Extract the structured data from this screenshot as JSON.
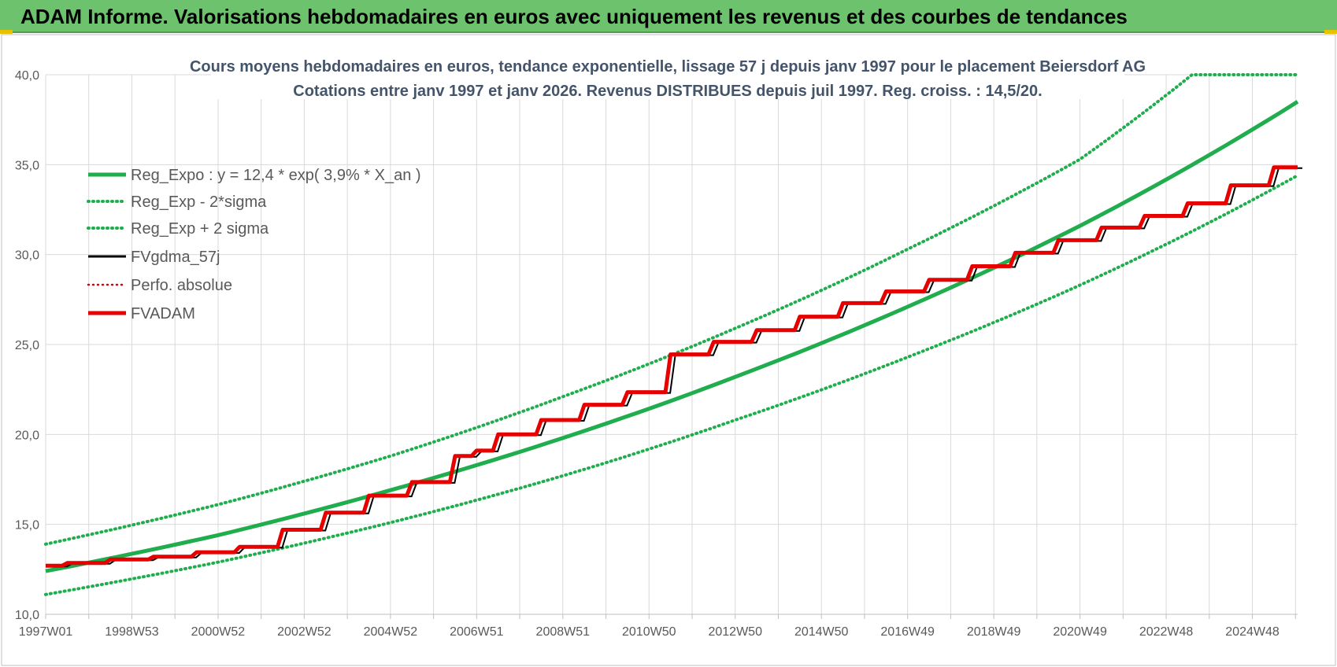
{
  "header": {
    "title": "ADAM Informe. Valorisations hebdomadaires en euros avec uniquement les revenus et des courbes de tendances"
  },
  "colors": {
    "header_bg": "#6dc26d",
    "reg_expo": "#1fad4d",
    "fvgdma": "#000000",
    "perfo": "#e00000",
    "fvadam": "#e60000",
    "grid": "#d9d9d9"
  },
  "chart_data": {
    "type": "line",
    "title": "Cours moyens hebdomadaires en euros, tendance exponentielle, lissage 57 j depuis janv 1997  pour le placement Beiersdorf AG",
    "subtitle": "Cotations entre janv 1997 et janv 2026. Revenus DISTRIBUES depuis juil 1997. Reg. croiss. : 14,5/20.",
    "xlabel": "",
    "ylabel": "",
    "ylim": [
      10,
      40
    ],
    "yticks": [
      "10,0",
      "15,0",
      "20,0",
      "25,0",
      "30,0",
      "35,0",
      "40,0"
    ],
    "xlim": [
      1997.0,
      2026.05
    ],
    "x_tick_labels": [
      {
        "label": "1997W01",
        "x": 1997.0
      },
      {
        "label": "1998W53",
        "x": 1999.0
      },
      {
        "label": "2000W52",
        "x": 2001.0
      },
      {
        "label": "2002W52",
        "x": 2003.0
      },
      {
        "label": "2004W52",
        "x": 2005.0
      },
      {
        "label": "2006W51",
        "x": 2007.0
      },
      {
        "label": "2008W51",
        "x": 2009.0
      },
      {
        "label": "2010W50",
        "x": 2011.0
      },
      {
        "label": "2012W50",
        "x": 2013.0
      },
      {
        "label": "2014W50",
        "x": 2015.0
      },
      {
        "label": "2016W49",
        "x": 2017.0
      },
      {
        "label": "2018W49",
        "x": 2019.0
      },
      {
        "label": "2020W49",
        "x": 2021.0
      },
      {
        "label": "2022W48",
        "x": 2023.0
      },
      {
        "label": "2024W48",
        "x": 2025.0
      }
    ],
    "grid": true,
    "legend_position": "top-left",
    "legend": [
      {
        "label": "Reg_Expo : y = 12,4 * exp( 3,9% *  X_an )",
        "style": "solid-thick",
        "color": "#1fad4d"
      },
      {
        "label": "Reg_Exp - 2*sigma",
        "style": "dotted",
        "color": "#1fad4d"
      },
      {
        "label": "Reg_Exp + 2 sigma",
        "style": "dotted",
        "color": "#1fad4d"
      },
      {
        "label": "FVgdma_57j",
        "style": "solid",
        "color": "#000000"
      },
      {
        "label": "Perfo. absolue",
        "style": "dotted",
        "color": "#e00000"
      },
      {
        "label": "FVADAM",
        "style": "solid-thick",
        "color": "#e60000"
      }
    ],
    "series": [
      {
        "name": "Reg_Expo : y = 12,4 * exp( 3,9% *  X_an )",
        "x": [
          1997.0,
          2001.0,
          2005.0,
          2009.0,
          2013.0,
          2017.0,
          2021.0,
          2026.05
        ],
        "y": [
          12.4,
          14.4,
          16.9,
          19.8,
          23.2,
          27.1,
          31.6,
          38.5
        ]
      },
      {
        "name": "Reg_Exp - 2*sigma",
        "x": [
          1997.0,
          2001.0,
          2005.0,
          2009.0,
          2013.0,
          2017.0,
          2021.0,
          2026.05
        ],
        "y": [
          11.1,
          12.9,
          15.1,
          17.7,
          20.8,
          24.3,
          28.3,
          34.4
        ]
      },
      {
        "name": "Reg_Exp + 2 sigma",
        "x": [
          1997.0,
          2001.0,
          2005.0,
          2009.0,
          2013.0,
          2017.0,
          2021.0,
          2023.6,
          2026.05
        ],
        "y": [
          13.9,
          16.1,
          18.8,
          22.1,
          25.9,
          30.3,
          35.3,
          40.0,
          40.0
        ]
      },
      {
        "name": "FVADAM",
        "x": [
          1997.0,
          1997.5,
          1998.5,
          1999.5,
          2000.5,
          2001.5,
          2002.5,
          2003.5,
          2004.5,
          2005.5,
          2006.5,
          2007.0,
          2007.5,
          2008.5,
          2009.5,
          2010.5,
          2011.5,
          2012.5,
          2013.5,
          2014.5,
          2015.5,
          2016.5,
          2017.5,
          2018.5,
          2019.5,
          2020.5,
          2021.5,
          2022.5,
          2023.5,
          2024.5,
          2025.5,
          2026.05
        ],
        "y": [
          12.7,
          12.85,
          13.05,
          13.2,
          13.45,
          13.75,
          14.7,
          15.65,
          16.6,
          17.35,
          18.8,
          19.1,
          20.0,
          20.8,
          21.65,
          22.35,
          24.45,
          25.15,
          25.8,
          26.55,
          27.3,
          27.95,
          28.6,
          29.35,
          30.1,
          30.8,
          31.5,
          32.15,
          32.85,
          33.85,
          34.85,
          34.85
        ]
      }
    ]
  }
}
